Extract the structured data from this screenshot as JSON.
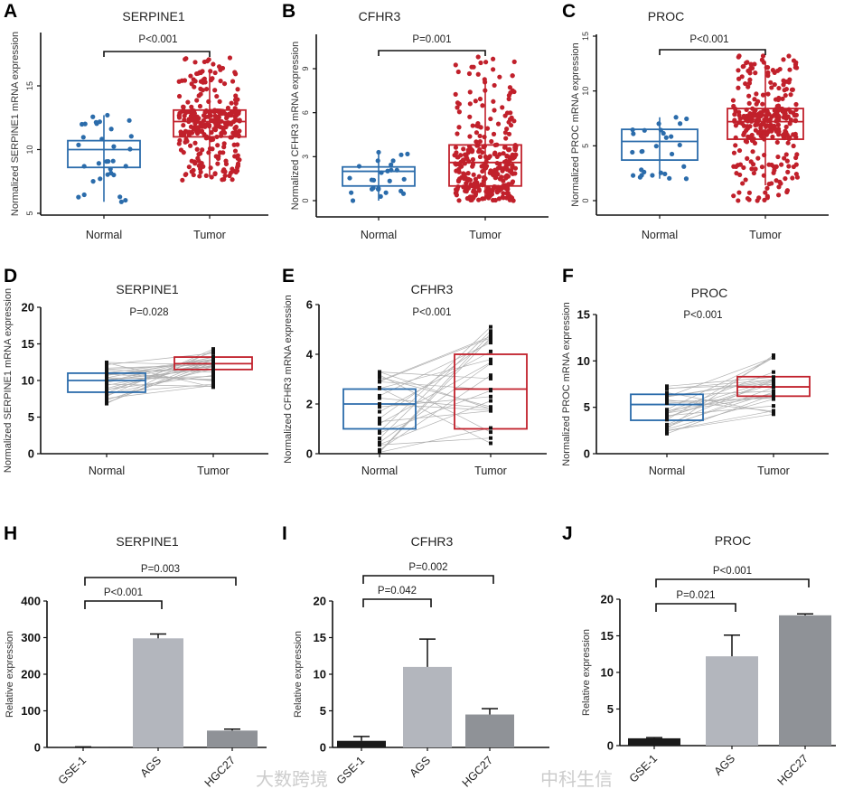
{
  "colors": {
    "normal": "#2b6cab",
    "tumor": "#c1202b",
    "gse1": "#1a1a1a",
    "ags": "#b3b6bd",
    "hgc27": "#8f9297",
    "pair_line": "#b0b0b0"
  },
  "watermarks": [
    "大数跨境",
    "中科生信"
  ],
  "chart_data": [
    {
      "panel": "A",
      "type": "box",
      "title": "SERPINE1",
      "ylabel": "Normalized SERPINE1 mRNA expression",
      "yticks": [
        5,
        10,
        15
      ],
      "ylim": [
        5,
        18
      ],
      "categories": [
        "Normal",
        "Tumor"
      ],
      "pvalue": "P<0.001",
      "bracket": true,
      "groups": [
        {
          "name": "Normal",
          "min": 5.9,
          "q1": 8.6,
          "median": 10.0,
          "q3": 10.7,
          "max": 12.7,
          "n": 32
        },
        {
          "name": "Tumor",
          "min": 7.6,
          "q1": 11.0,
          "median": 12.2,
          "q3": 13.1,
          "max": 17.2,
          "n": 300
        }
      ]
    },
    {
      "panel": "B",
      "type": "box",
      "title": "CFHR3",
      "ylabel": "Normalized CFHR3 mRNA expression",
      "yticks": [
        0,
        3,
        6,
        9
      ],
      "ylim": [
        0,
        10
      ],
      "categories": [
        "Normal",
        "Tumor"
      ],
      "pvalue": "P=0.001",
      "bracket": true,
      "groups": [
        {
          "name": "Normal",
          "min": 0,
          "q1": 1.0,
          "median": 2.0,
          "q3": 2.3,
          "max": 3.3,
          "n": 27
        },
        {
          "name": "Tumor",
          "min": 0,
          "q1": 1.0,
          "median": 2.6,
          "q3": 3.8,
          "max": 9.8,
          "n": 300
        }
      ]
    },
    {
      "panel": "C",
      "type": "box",
      "title": "PROC",
      "ylabel": "Normalized PROC mRNA expression",
      "yticks": [
        0,
        5,
        10,
        15
      ],
      "ylim": [
        0,
        15
      ],
      "categories": [
        "Normal",
        "Tumor"
      ],
      "pvalue": "P<0.001",
      "bracket": true,
      "groups": [
        {
          "name": "Normal",
          "min": 2.0,
          "q1": 3.7,
          "median": 5.4,
          "q3": 6.5,
          "max": 7.6,
          "n": 28
        },
        {
          "name": "Tumor",
          "min": 0,
          "q1": 5.6,
          "median": 7.2,
          "q3": 8.4,
          "max": 13.2,
          "n": 300
        }
      ]
    },
    {
      "panel": "D",
      "type": "paired-box",
      "title": "SERPINE1",
      "ylabel": "Normalized SERPINE1 mRNA expression",
      "yticks": [
        0,
        5,
        10,
        15,
        20
      ],
      "ylim": [
        0,
        20
      ],
      "categories": [
        "Normal",
        "Tumor"
      ],
      "pvalue": "P=0.028",
      "bracket": false,
      "groups": [
        {
          "name": "Normal",
          "min": 6.7,
          "q1": 8.4,
          "median": 10.0,
          "q3": 11.0,
          "max": 12.5,
          "n": 32
        },
        {
          "name": "Tumor",
          "min": 8.2,
          "q1": 11.5,
          "median": 12.3,
          "q3": 13.2,
          "max": 15.8,
          "n": 32
        }
      ]
    },
    {
      "panel": "E",
      "type": "paired-box",
      "title": "CFHR3",
      "ylabel": "Normalized CFHR3 mRNA expression",
      "yticks": [
        0,
        2,
        4,
        6
      ],
      "ylim": [
        0,
        6
      ],
      "categories": [
        "Normal",
        "Tumor"
      ],
      "pvalue": "P<0.001",
      "bracket": false,
      "groups": [
        {
          "name": "Normal",
          "min": 0,
          "q1": 1.0,
          "median": 2.0,
          "q3": 2.6,
          "max": 3.3,
          "n": 27
        },
        {
          "name": "Tumor",
          "min": 0,
          "q1": 1.0,
          "median": 2.6,
          "q3": 4.0,
          "max": 5.5,
          "n": 27
        }
      ]
    },
    {
      "panel": "F",
      "type": "paired-box",
      "title": "PROC",
      "ylabel": "Normalized PROC mRNA expression",
      "yticks": [
        0,
        5,
        10,
        15
      ],
      "ylim": [
        0,
        15
      ],
      "categories": [
        "Normal",
        "Tumor"
      ],
      "pvalue": "P<0.001",
      "bracket": false,
      "groups": [
        {
          "name": "Normal",
          "min": 2.0,
          "q1": 3.6,
          "median": 5.3,
          "q3": 6.4,
          "max": 7.7,
          "n": 28
        },
        {
          "name": "Tumor",
          "min": 3.8,
          "q1": 6.2,
          "median": 7.2,
          "q3": 8.3,
          "max": 10.9,
          "n": 28
        }
      ]
    },
    {
      "panel": "H",
      "type": "bar",
      "title": "SERPINE1",
      "ylabel": "Relative expression",
      "yticks": [
        0,
        100,
        200,
        300,
        400
      ],
      "ylim": [
        0,
        400
      ],
      "categories": [
        "GSE-1",
        "AGS",
        "HGC27"
      ],
      "values": [
        1,
        298,
        46
      ],
      "errors": [
        0.5,
        12,
        4
      ],
      "comparisons": [
        {
          "from": 0,
          "to": 1,
          "label": "P<0.001"
        },
        {
          "from": 0,
          "to": 2,
          "label": "P=0.003"
        }
      ]
    },
    {
      "panel": "I",
      "type": "bar",
      "title": "CFHR3",
      "ylabel": "Relative expression",
      "yticks": [
        0,
        5,
        10,
        15,
        20
      ],
      "ylim": [
        0,
        20
      ],
      "categories": [
        "GSE-1",
        "AGS",
        "HGC27"
      ],
      "values": [
        0.9,
        11.0,
        4.5
      ],
      "errors": [
        0.6,
        3.8,
        0.8
      ],
      "comparisons": [
        {
          "from": 0,
          "to": 1,
          "label": "P=0.042"
        },
        {
          "from": 0,
          "to": 2,
          "label": "P=0.002"
        }
      ]
    },
    {
      "panel": "J",
      "type": "bar",
      "title": "PROC",
      "ylabel": "Relative expression",
      "yticks": [
        0,
        5,
        10,
        15,
        20
      ],
      "ylim": [
        0,
        20
      ],
      "categories": [
        "GSE-1",
        "AGS",
        "HGC27"
      ],
      "values": [
        1.0,
        12.2,
        17.8
      ],
      "errors": [
        0.1,
        2.9,
        0.2
      ],
      "comparisons": [
        {
          "from": 0,
          "to": 1,
          "label": "P=0.021"
        },
        {
          "from": 0,
          "to": 2,
          "label": "P<0.001"
        }
      ]
    }
  ]
}
